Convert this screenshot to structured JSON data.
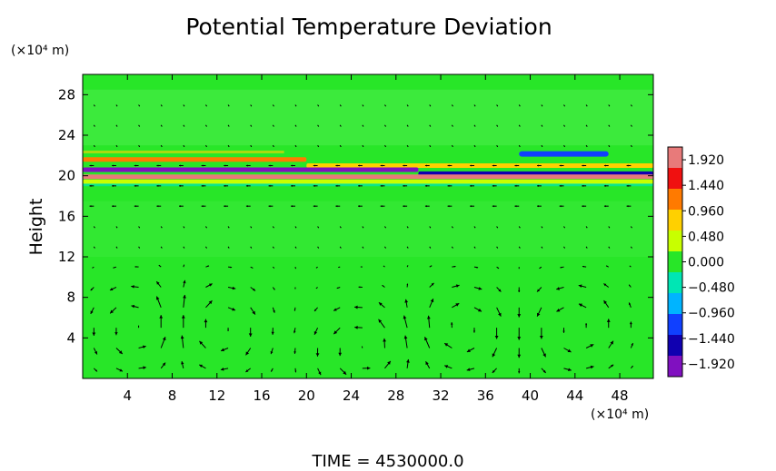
{
  "chart_data": {
    "type": "heatmap",
    "title": "Potential Temperature Deviation",
    "ylabel": "Height",
    "y_unit": "(×10⁴ m)",
    "x_unit": "(×10⁴ m)",
    "footer": "TIME  =  4530000.0",
    "xlim": [
      0,
      51
    ],
    "ylim": [
      0,
      30
    ],
    "x_ticks": [
      4,
      8,
      12,
      16,
      20,
      24,
      28,
      32,
      36,
      40,
      44,
      48
    ],
    "y_ticks": [
      4,
      8,
      12,
      16,
      20,
      24,
      28
    ],
    "colorbar": {
      "range": [
        -2.16,
        2.16
      ],
      "labels": [
        "1.920",
        "1.440",
        "0.960",
        "0.480",
        "0.000",
        "−0.480",
        "−0.960",
        "−1.440",
        "−1.920"
      ],
      "label_values": [
        1.92,
        1.44,
        0.96,
        0.48,
        0.0,
        -0.48,
        -0.96,
        -1.44,
        -1.92
      ],
      "colors": [
        "#e87a7a",
        "#f01010",
        "#ff7a00",
        "#ffd000",
        "#c8ff00",
        "#28e628",
        "#00e6b4",
        "#00b4ff",
        "#1040ff",
        "#1000b0",
        "#8010c0"
      ]
    },
    "field": {
      "description_values": "potential temperature deviation near zero below ~19 (x10^4 m); strong warm band at ~21.5, cold band at ~20.5, warm sheet at ~19.8; cold patch near x 40-46, y 22",
      "background_value": 0.0,
      "bands": [
        {
          "y": 21.6,
          "value": 1.1,
          "x_from": 0,
          "x_to": 20
        },
        {
          "y": 21.0,
          "value": 0.6,
          "x_from": 20,
          "x_to": 51
        },
        {
          "y": 20.6,
          "value": -1.9,
          "x_from": 0,
          "x_to": 30
        },
        {
          "y": 20.2,
          "value": -1.6,
          "x_from": 30,
          "x_to": 51
        },
        {
          "y": 19.9,
          "value": 1.9,
          "x_from": 0,
          "x_to": 51
        },
        {
          "y": 19.4,
          "value": 0.5,
          "x_from": 0,
          "x_to": 51
        },
        {
          "y": 22.2,
          "value": -1.3,
          "x_from": 39,
          "x_to": 47
        }
      ]
    },
    "vector_field": {
      "layers": "upper layer y 19-28 weak; lower layer y 0-11 circulation cells",
      "cells": [
        {
          "x_center": 5,
          "y_center": 5,
          "direction": "counterclockwise"
        },
        {
          "x_center": 12,
          "y_center": 5,
          "direction": "clockwise"
        },
        {
          "x_center": 25,
          "y_center": 3,
          "direction": "counterclockwise"
        },
        {
          "x_center": 34,
          "y_center": 5,
          "direction": "clockwise"
        },
        {
          "x_center": 44,
          "y_center": 5,
          "direction": "counterclockwise"
        }
      ]
    }
  }
}
